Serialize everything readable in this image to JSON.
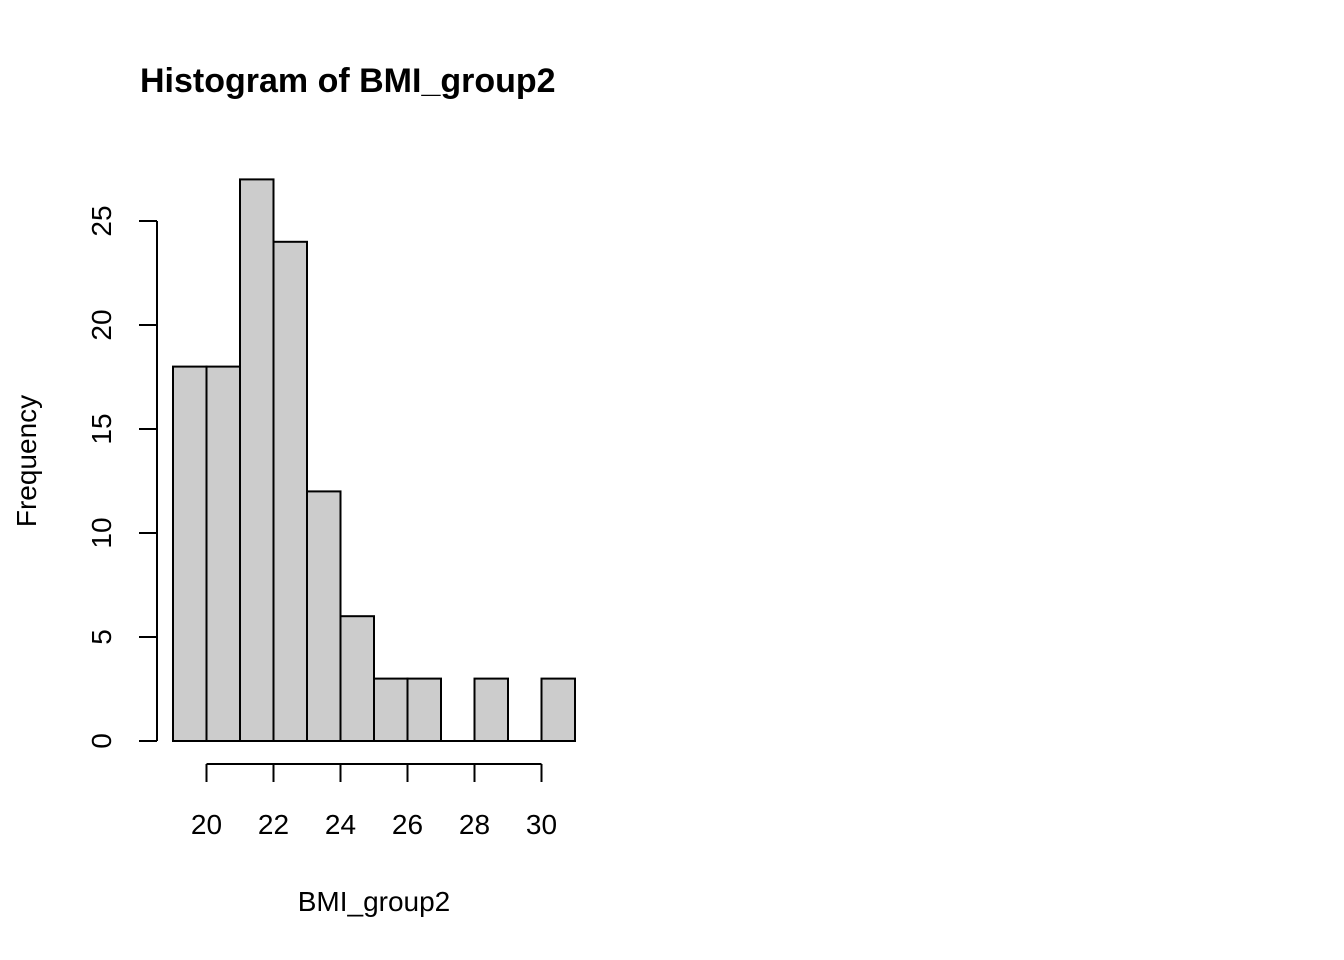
{
  "chart_data": {
    "type": "bar",
    "subtype": "histogram",
    "title": "Histogram of BMI_group2",
    "xlabel": "BMI_group2",
    "ylabel": "Frequency",
    "bins": [
      {
        "from": 19,
        "to": 20,
        "count": 18
      },
      {
        "from": 20,
        "to": 21,
        "count": 18
      },
      {
        "from": 21,
        "to": 22,
        "count": 27
      },
      {
        "from": 22,
        "to": 23,
        "count": 24
      },
      {
        "from": 23,
        "to": 24,
        "count": 12
      },
      {
        "from": 24,
        "to": 25,
        "count": 6
      },
      {
        "from": 25,
        "to": 26,
        "count": 3
      },
      {
        "from": 26,
        "to": 27,
        "count": 3
      },
      {
        "from": 27,
        "to": 28,
        "count": 0
      },
      {
        "from": 28,
        "to": 29,
        "count": 3
      },
      {
        "from": 29,
        "to": 30,
        "count": 0
      },
      {
        "from": 30,
        "to": 31,
        "count": 3
      }
    ],
    "x_ticks": [
      "20",
      "22",
      "24",
      "26",
      "28",
      "30"
    ],
    "y_ticks": [
      "0",
      "5",
      "10",
      "15",
      "20",
      "25"
    ],
    "xlim": [
      19,
      31
    ],
    "ylim": [
      0,
      27
    ],
    "bar_color": "#cccccc",
    "grid": false
  }
}
